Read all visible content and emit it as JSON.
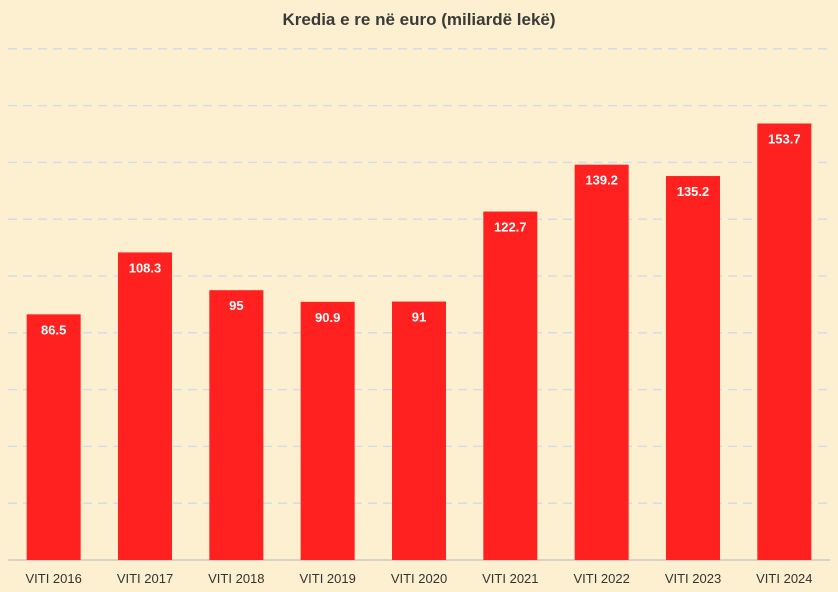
{
  "chart_data": {
    "type": "bar",
    "title": "Kredia e re në euro (miliardë lekë)",
    "categories": [
      "VITI 2016",
      "VITI 2017",
      "VITI 2018",
      "VITI 2019",
      "VITI 2020",
      "VITI 2021",
      "VITI 2022",
      "VITI 2023",
      "VITI 2024"
    ],
    "values": [
      86.5,
      108.3,
      95,
      90.9,
      91,
      122.7,
      139.2,
      135.2,
      153.7
    ],
    "value_labels": [
      "86.5",
      "108.3",
      "95",
      "90.9",
      "91",
      "122.7",
      "139.2",
      "135.2",
      "153.7"
    ],
    "ylim": [
      0,
      180
    ],
    "ytick_step": 20,
    "grid": "horizontal dashed",
    "legend": "none",
    "colors": {
      "bar": "#ff2020",
      "background": "#fdf0d0",
      "grid": "#d3dde8",
      "axis": "#c9c9c9"
    }
  }
}
